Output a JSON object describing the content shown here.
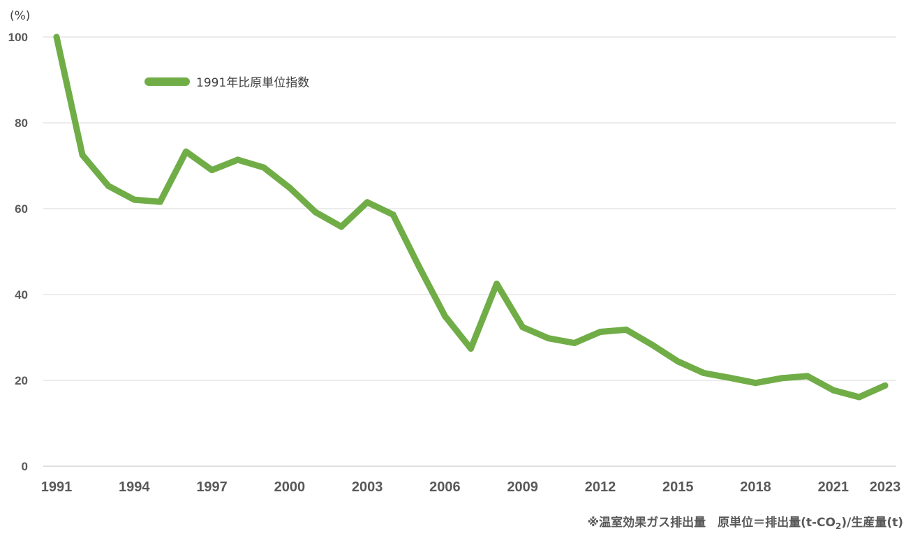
{
  "chart_data": {
    "type": "line",
    "y_unit": "(%)",
    "ylim": [
      0,
      100
    ],
    "y_ticks": [
      "100",
      "80",
      "60",
      "40",
      "20",
      "0"
    ],
    "x_ticks": [
      "1991",
      "1994",
      "1997",
      "2000",
      "2003",
      "2006",
      "2009",
      "2012",
      "2015",
      "2018",
      "2021",
      "2023"
    ],
    "grid": "horizontal",
    "legend_position": "top-left",
    "series": [
      {
        "name": "1991年比原単位指数",
        "color": "#70AD47",
        "x": [
          1991,
          1992,
          1993,
          1994,
          1995,
          1996,
          1997,
          1998,
          1999,
          2000,
          2001,
          2002,
          2003,
          2004,
          2005,
          2006,
          2007,
          2008,
          2009,
          2010,
          2011,
          2012,
          2013,
          2014,
          2015,
          2016,
          2017,
          2018,
          2019,
          2020,
          2021,
          2022,
          2023
        ],
        "values": [
          100,
          72.5,
          65.3,
          62.1,
          61.6,
          73.3,
          69.0,
          71.4,
          69.6,
          64.9,
          59.2,
          55.8,
          61.5,
          58.6,
          46.5,
          35.0,
          27.4,
          42.5,
          32.4,
          29.8,
          28.7,
          31.3,
          31.8,
          28.3,
          24.4,
          21.7,
          20.6,
          19.4,
          20.5,
          21.0,
          17.7,
          16.1,
          18.8
        ]
      }
    ],
    "footnote_part1": "※温室効果ガス排出量　原単位＝排出量(t-CO",
    "footnote_subscript": "2",
    "footnote_part2": ")/生産量(t)"
  }
}
